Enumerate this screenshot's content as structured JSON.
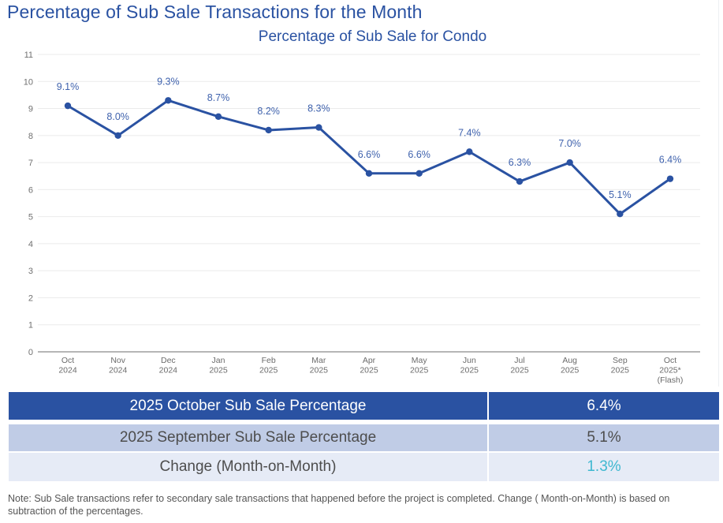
{
  "page": {
    "title": "Percentage of Sub Sale Transactions for the Month",
    "note": "Note: Sub Sale transactions refer to secondary sale transactions that happened before the project is completed. Change ( Month-on-Month) is based on subtraction of the percentages."
  },
  "colors": {
    "primary": "#2a52a2",
    "line": "#2a52a2",
    "label": "#3f62ad",
    "row2_bg": "#c0cce6",
    "row3_bg": "#e6ebf6",
    "change_value": "#3fb8d0"
  },
  "chart_data": {
    "type": "line",
    "title": "Percentage of Sub Sale for Condo",
    "xlabel": "",
    "ylabel": "",
    "ylim": [
      0,
      11
    ],
    "yticks": [
      0,
      1,
      2,
      3,
      4,
      5,
      6,
      7,
      8,
      9,
      10,
      11
    ],
    "grid": true,
    "legend": "none",
    "categories": [
      [
        "Oct",
        "2024"
      ],
      [
        "Nov",
        "2024"
      ],
      [
        "Dec",
        "2024"
      ],
      [
        "Jan",
        "2025"
      ],
      [
        "Feb",
        "2025"
      ],
      [
        "Mar",
        "2025"
      ],
      [
        "Apr",
        "2025"
      ],
      [
        "May",
        "2025"
      ],
      [
        "Jun",
        "2025"
      ],
      [
        "Jul",
        "2025"
      ],
      [
        "Aug",
        "2025"
      ],
      [
        "Sep",
        "2025"
      ],
      [
        "Oct",
        "2025*",
        "(Flash)"
      ]
    ],
    "series": [
      {
        "name": "Percentage of Sub Sale for Condo",
        "values": [
          9.1,
          8.0,
          9.3,
          8.7,
          8.2,
          8.3,
          6.6,
          6.6,
          7.4,
          6.3,
          7.0,
          5.1,
          6.4
        ],
        "labels": [
          "9.1%",
          "8.0%",
          "9.3%",
          "8.7%",
          "8.2%",
          "8.3%",
          "6.6%",
          "6.6%",
          "7.4%",
          "6.3%",
          "7.0%",
          "5.1%",
          "6.4%"
        ]
      }
    ]
  },
  "summary_table": {
    "rows": [
      {
        "label": "2025 October Sub Sale Percentage",
        "value": "6.4%"
      },
      {
        "label": "2025 September Sub Sale Percentage",
        "value": "5.1%"
      },
      {
        "label": "Change (Month-on-Month)",
        "value": "1.3%"
      }
    ]
  }
}
